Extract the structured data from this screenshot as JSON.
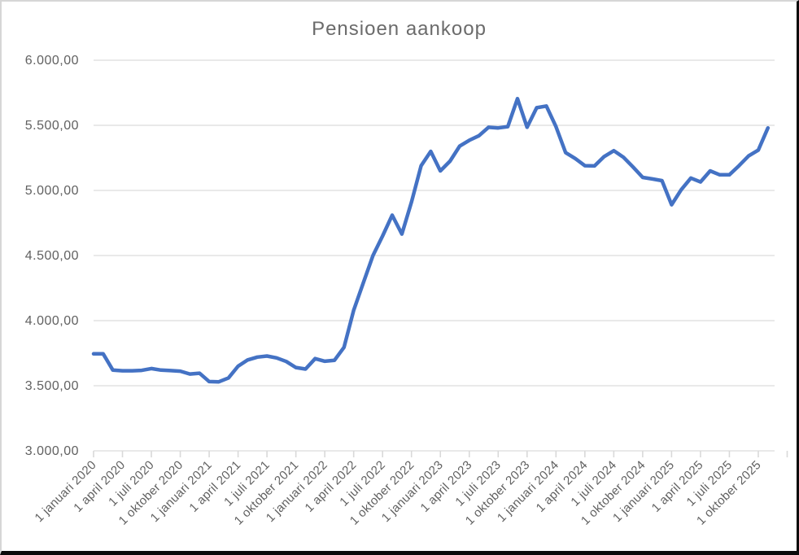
{
  "chart_data": {
    "type": "line",
    "title": "Pensioen aankoop",
    "y_min": 3000,
    "y_max": 6000,
    "y_step": 500,
    "grid": true,
    "legend": "none",
    "line_color": "#4472c4",
    "grid_color": "#e2e2e2",
    "tick_color": "#d9d9d9",
    "label_color": "#616161",
    "y_tick_labels": [
      "6.000,00",
      "5.500,00",
      "5.000,00",
      "4.500,00",
      "4.000,00",
      "3.500,00",
      "3.000,00"
    ],
    "x_tick_labels": [
      "1 januari 2020",
      "1 april 2020",
      "1 juli 2020",
      "1 oktober 2020",
      "1 januari 2021",
      "1 april 2021",
      "1 juli 2021",
      "1 oktober 2021",
      "1 januari 2022",
      "1 april 2022",
      "1 juli 2022",
      "1 oktober 2022",
      "1 januari 2023",
      "1 april 2023",
      "1 juli 2023",
      "1 oktober 2023",
      "1 januari 2024",
      "1 april 2024",
      "1 juli 2024",
      "1 oktober 2024",
      "1 januari 2025",
      "1 april 2025",
      "1 juli 2025",
      "1 oktober 2025"
    ],
    "series": [
      {
        "name": "Pensioen aankoop",
        "months": [
          "2020-01",
          "2020-02",
          "2020-03",
          "2020-04",
          "2020-05",
          "2020-06",
          "2020-07",
          "2020-08",
          "2020-09",
          "2020-10",
          "2020-11",
          "2020-12",
          "2021-01",
          "2021-02",
          "2021-03",
          "2021-04",
          "2021-05",
          "2021-06",
          "2021-07",
          "2021-08",
          "2021-09",
          "2021-10",
          "2021-11",
          "2021-12",
          "2022-01",
          "2022-02",
          "2022-03",
          "2022-04",
          "2022-05",
          "2022-06",
          "2022-07",
          "2022-08",
          "2022-09",
          "2022-10",
          "2022-11",
          "2022-12",
          "2023-01",
          "2023-02",
          "2023-03",
          "2023-04",
          "2023-05",
          "2023-06",
          "2023-07",
          "2023-08",
          "2023-09",
          "2023-10",
          "2023-11",
          "2023-12",
          "2024-01",
          "2024-02",
          "2024-03",
          "2024-04",
          "2024-05",
          "2024-06",
          "2024-07",
          "2024-08",
          "2024-09",
          "2024-10",
          "2024-11",
          "2024-12",
          "2025-01",
          "2025-02",
          "2025-03",
          "2025-04",
          "2025-05",
          "2025-06",
          "2025-07",
          "2025-08",
          "2025-09",
          "2025-10",
          "2025-11"
        ],
        "values": [
          3745,
          3745,
          3620,
          3615,
          3615,
          3618,
          3632,
          3620,
          3616,
          3612,
          3590,
          3596,
          3532,
          3530,
          3560,
          3650,
          3698,
          3720,
          3728,
          3714,
          3686,
          3640,
          3628,
          3708,
          3688,
          3695,
          3795,
          4080,
          4290,
          4500,
          4650,
          4810,
          4665,
          4910,
          5190,
          5300,
          5150,
          5225,
          5340,
          5385,
          5420,
          5485,
          5480,
          5490,
          5705,
          5485,
          5635,
          5648,
          5490,
          5290,
          5245,
          5190,
          5188,
          5260,
          5305,
          5255,
          5180,
          5100,
          5088,
          5075,
          4890,
          5005,
          5095,
          5065,
          5150,
          5120,
          5120,
          5190,
          5265,
          5310,
          5480
        ]
      }
    ]
  }
}
